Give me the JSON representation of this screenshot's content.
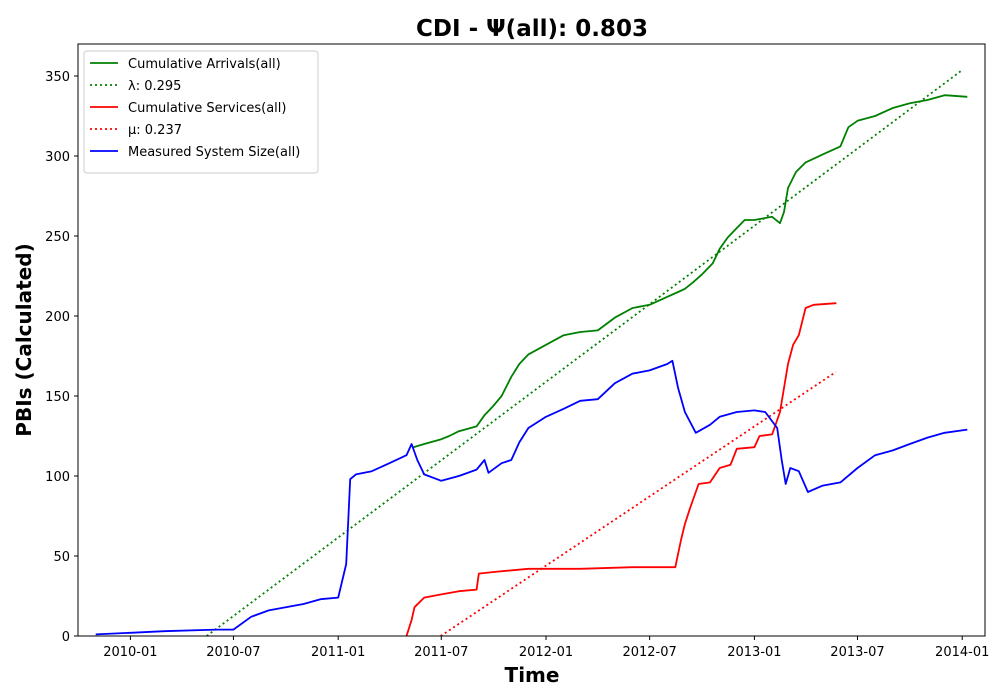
{
  "chart_data": {
    "type": "line",
    "title": "CDI -  Ψ(all): 0.803",
    "xlabel": "Time",
    "ylabel": "PBIs (Calculated)",
    "xlim": [
      "2009-10-01",
      "2014-02-10"
    ],
    "ylim": [
      0,
      370
    ],
    "x_ticks": [
      "2010-01",
      "2010-07",
      "2011-01",
      "2011-07",
      "2012-01",
      "2012-07",
      "2013-01",
      "2013-07",
      "2014-01"
    ],
    "y_ticks": [
      0,
      50,
      100,
      150,
      200,
      250,
      300,
      350
    ],
    "grid": false,
    "legend_position": "top-left",
    "series": [
      {
        "name": "Cumulative Arrivals(all)",
        "color": "#008000",
        "style": "solid",
        "points": [
          [
            "2011-05-13",
            118
          ],
          [
            "2011-06-01",
            120
          ],
          [
            "2011-07-01",
            123
          ],
          [
            "2011-07-15",
            125
          ],
          [
            "2011-08-01",
            128
          ],
          [
            "2011-09-01",
            131
          ],
          [
            "2011-09-15",
            138
          ],
          [
            "2011-10-01",
            144
          ],
          [
            "2011-10-15",
            150
          ],
          [
            "2011-11-01",
            162
          ],
          [
            "2011-11-15",
            170
          ],
          [
            "2011-12-01",
            176
          ],
          [
            "2012-01-01",
            182
          ],
          [
            "2012-02-01",
            188
          ],
          [
            "2012-03-01",
            190
          ],
          [
            "2012-04-01",
            191
          ],
          [
            "2012-05-01",
            199
          ],
          [
            "2012-06-01",
            205
          ],
          [
            "2012-07-01",
            207
          ],
          [
            "2012-08-01",
            212
          ],
          [
            "2012-08-20",
            215
          ],
          [
            "2012-09-01",
            217
          ],
          [
            "2012-09-15",
            221
          ],
          [
            "2012-10-01",
            226
          ],
          [
            "2012-10-20",
            233
          ],
          [
            "2012-11-01",
            242
          ],
          [
            "2012-11-15",
            249
          ],
          [
            "2012-12-01",
            255
          ],
          [
            "2012-12-15",
            260
          ],
          [
            "2013-01-01",
            260
          ],
          [
            "2013-02-01",
            262
          ],
          [
            "2013-02-15",
            258
          ],
          [
            "2013-02-22",
            265
          ],
          [
            "2013-03-01",
            280
          ],
          [
            "2013-03-15",
            290
          ],
          [
            "2013-04-01",
            296
          ],
          [
            "2013-05-01",
            301
          ],
          [
            "2013-06-01",
            306
          ],
          [
            "2013-06-15",
            318
          ],
          [
            "2013-07-01",
            322
          ],
          [
            "2013-08-01",
            325
          ],
          [
            "2013-09-01",
            330
          ],
          [
            "2013-10-01",
            333
          ],
          [
            "2013-11-01",
            335
          ],
          [
            "2013-12-01",
            338
          ],
          [
            "2014-01-10",
            337
          ]
        ]
      },
      {
        "name": "λ: 0.295",
        "color": "#008000",
        "style": "dotted",
        "points": [
          [
            "2010-05-15",
            0
          ],
          [
            "2014-01-02",
            354
          ]
        ]
      },
      {
        "name": "Cumulative Services(all)",
        "color": "#ff0000",
        "style": "solid",
        "points": [
          [
            "2011-05-01",
            0
          ],
          [
            "2011-05-10",
            10
          ],
          [
            "2011-05-15",
            18
          ],
          [
            "2011-06-01",
            24
          ],
          [
            "2011-07-01",
            26
          ],
          [
            "2011-08-01",
            28
          ],
          [
            "2011-09-01",
            29
          ],
          [
            "2011-09-05",
            39
          ],
          [
            "2011-10-01",
            40
          ],
          [
            "2011-12-01",
            42
          ],
          [
            "2012-03-01",
            42
          ],
          [
            "2012-06-01",
            43
          ],
          [
            "2012-08-15",
            43
          ],
          [
            "2012-08-25",
            60
          ],
          [
            "2012-09-01",
            70
          ],
          [
            "2012-09-10",
            80
          ],
          [
            "2012-09-25",
            95
          ],
          [
            "2012-10-15",
            96
          ],
          [
            "2012-11-01",
            105
          ],
          [
            "2012-11-20",
            107
          ],
          [
            "2012-12-01",
            117
          ],
          [
            "2013-01-01",
            118
          ],
          [
            "2013-01-10",
            125
          ],
          [
            "2013-02-01",
            126
          ],
          [
            "2013-02-15",
            140
          ],
          [
            "2013-03-01",
            170
          ],
          [
            "2013-03-10",
            182
          ],
          [
            "2013-03-20",
            188
          ],
          [
            "2013-04-01",
            205
          ],
          [
            "2013-04-15",
            207
          ],
          [
            "2013-05-25",
            208
          ]
        ]
      },
      {
        "name": "μ: 0.237",
        "color": "#ff0000",
        "style": "dotted",
        "points": [
          [
            "2011-06-30",
            0
          ],
          [
            "2013-05-24",
            165
          ]
        ]
      },
      {
        "name": "Measured System Size(all)",
        "color": "#0000ff",
        "style": "solid",
        "points": [
          [
            "2009-11-01",
            1
          ],
          [
            "2010-01-01",
            2
          ],
          [
            "2010-03-01",
            3
          ],
          [
            "2010-06-01",
            4
          ],
          [
            "2010-07-01",
            4
          ],
          [
            "2010-08-01",
            12
          ],
          [
            "2010-09-01",
            16
          ],
          [
            "2010-11-01",
            20
          ],
          [
            "2010-12-01",
            23
          ],
          [
            "2011-01-01",
            24
          ],
          [
            "2011-01-05",
            30
          ],
          [
            "2011-01-15",
            45
          ],
          [
            "2011-01-22",
            98
          ],
          [
            "2011-02-01",
            101
          ],
          [
            "2011-03-01",
            103
          ],
          [
            "2011-04-01",
            108
          ],
          [
            "2011-05-01",
            113
          ],
          [
            "2011-05-10",
            120
          ],
          [
            "2011-05-20",
            110
          ],
          [
            "2011-06-01",
            101
          ],
          [
            "2011-07-01",
            97
          ],
          [
            "2011-08-01",
            100
          ],
          [
            "2011-09-01",
            104
          ],
          [
            "2011-09-15",
            110
          ],
          [
            "2011-09-22",
            102
          ],
          [
            "2011-10-15",
            108
          ],
          [
            "2011-11-01",
            110
          ],
          [
            "2011-11-15",
            121
          ],
          [
            "2011-12-01",
            130
          ],
          [
            "2012-01-01",
            137
          ],
          [
            "2012-02-01",
            142
          ],
          [
            "2012-03-01",
            147
          ],
          [
            "2012-04-01",
            148
          ],
          [
            "2012-05-01",
            158
          ],
          [
            "2012-06-01",
            164
          ],
          [
            "2012-07-01",
            166
          ],
          [
            "2012-08-01",
            170
          ],
          [
            "2012-08-10",
            172
          ],
          [
            "2012-08-20",
            155
          ],
          [
            "2012-09-01",
            140
          ],
          [
            "2012-09-20",
            127
          ],
          [
            "2012-10-15",
            132
          ],
          [
            "2012-11-01",
            137
          ],
          [
            "2012-12-01",
            140
          ],
          [
            "2013-01-01",
            141
          ],
          [
            "2013-01-20",
            140
          ],
          [
            "2013-02-10",
            130
          ],
          [
            "2013-02-18",
            110
          ],
          [
            "2013-02-25",
            95
          ],
          [
            "2013-03-05",
            105
          ],
          [
            "2013-03-20",
            103
          ],
          [
            "2013-04-05",
            90
          ],
          [
            "2013-05-01",
            94
          ],
          [
            "2013-06-01",
            96
          ],
          [
            "2013-07-01",
            105
          ],
          [
            "2013-08-01",
            113
          ],
          [
            "2013-09-01",
            116
          ],
          [
            "2013-10-01",
            120
          ],
          [
            "2013-11-01",
            124
          ],
          [
            "2013-12-01",
            127
          ],
          [
            "2014-01-10",
            129
          ]
        ]
      }
    ]
  }
}
